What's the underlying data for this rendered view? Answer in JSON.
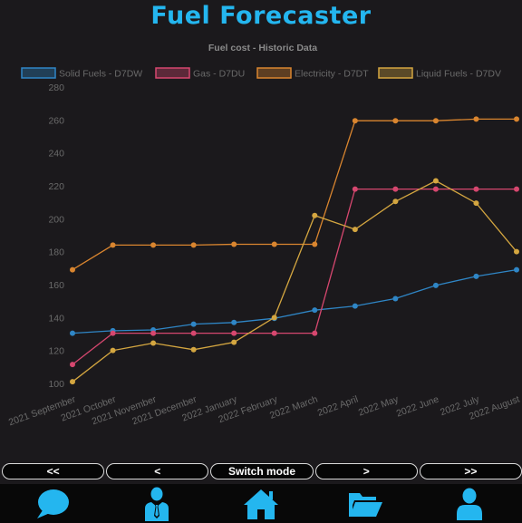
{
  "app": {
    "title": "Fuel Forecaster"
  },
  "nav": {
    "first_label": "<<",
    "prev_label": "<",
    "switch_label": "Switch mode",
    "next_label": ">",
    "last_label": ">>"
  },
  "tabs": [
    {
      "name": "chat",
      "icon": "speech-bubble-icon"
    },
    {
      "name": "profile",
      "icon": "businessman-icon"
    },
    {
      "name": "home",
      "icon": "home-icon"
    },
    {
      "name": "files",
      "icon": "open-folder-icon"
    },
    {
      "name": "account",
      "icon": "user-icon"
    }
  ],
  "colors": {
    "accent": "#24b6ef",
    "background": "#1b191c"
  },
  "chart_data": {
    "type": "line",
    "title": "Fuel cost - Historic Data",
    "xlabel": "",
    "ylabel": "",
    "ylim": [
      100,
      280
    ],
    "yticks": [
      100,
      120,
      140,
      160,
      180,
      200,
      220,
      240,
      260,
      280
    ],
    "grid": false,
    "legend": "top",
    "categories": [
      "2021 September",
      "2021 October",
      "2021 November",
      "2021 December",
      "2022 January",
      "2022 February",
      "2022 March",
      "2022 April",
      "2022 May",
      "2022 June",
      "2022 July",
      "2022 August"
    ],
    "series": [
      {
        "name": "Solid Fuels - D7DW",
        "color": "#2f86c6",
        "values": [
          130.5,
          132,
          132.5,
          136,
          137,
          139.5,
          144.5,
          147,
          151.5,
          159.5,
          165,
          169
        ]
      },
      {
        "name": "Gas - D7DU",
        "color": "#d6476f",
        "values": [
          111.5,
          130.5,
          130.5,
          130.5,
          130.5,
          130.5,
          130.5,
          218,
          218,
          218,
          218,
          218
        ]
      },
      {
        "name": "Electricity - D7DT",
        "color": "#d9852f",
        "values": [
          169,
          184,
          184,
          184,
          184.5,
          184.5,
          184.5,
          259.5,
          259.5,
          259.5,
          260.5,
          260.5
        ]
      },
      {
        "name": "Liquid Fuels - D7DV",
        "color": "#d4a640",
        "values": [
          101,
          120,
          124.5,
          120.5,
          125,
          140,
          202,
          193.5,
          210.5,
          223,
          209.5,
          180
        ]
      }
    ]
  }
}
